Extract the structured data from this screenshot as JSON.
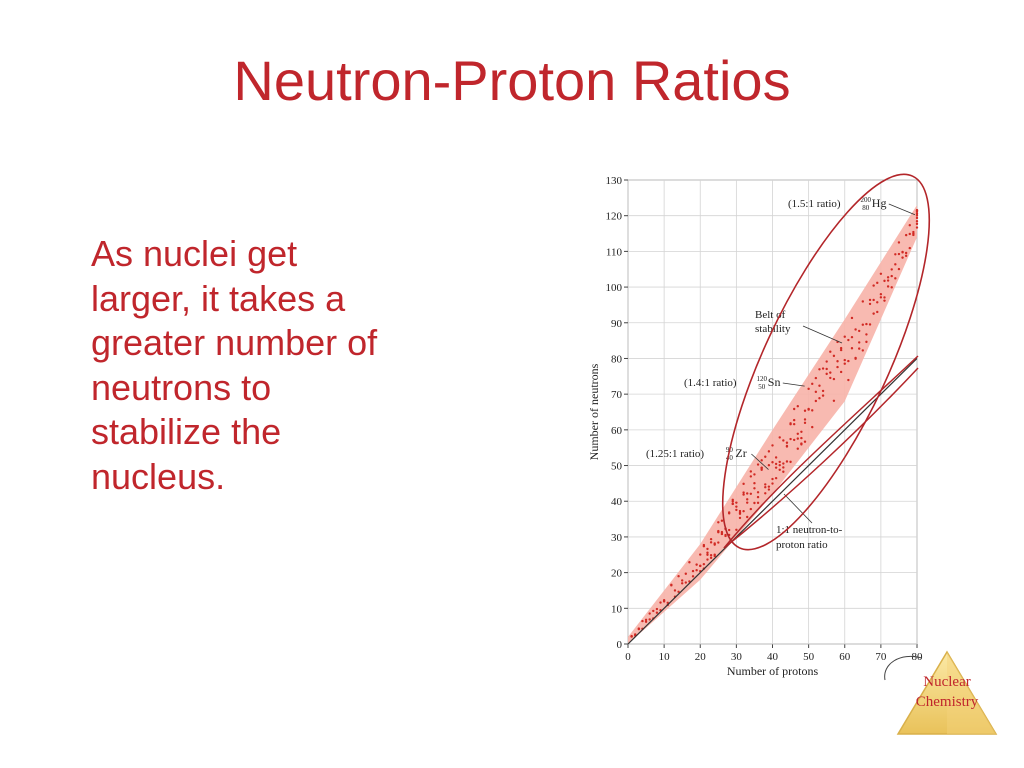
{
  "title": "Neutron-Proton Ratios",
  "body_lines": [
    "As nuclei get",
    "larger, it takes a",
    "greater number of",
    "neutrons to",
    "stabilize the",
    "nucleus."
  ],
  "badge": {
    "line1": "Nuclear",
    "line2": "Chemistry"
  },
  "colors": {
    "title": "#c0262c",
    "belt": "#f7b3a8",
    "points": "#d12a24",
    "ellipse": "#b3262a"
  },
  "chart_data": {
    "type": "scatter",
    "xlabel": "Number of protons",
    "ylabel": "Number of neutrons",
    "xlim": [
      0,
      80
    ],
    "ylim": [
      0,
      130
    ],
    "xticks": [
      0,
      10,
      20,
      30,
      40,
      50,
      60,
      70,
      80
    ],
    "yticks": [
      0,
      10,
      20,
      30,
      40,
      50,
      60,
      70,
      80,
      90,
      100,
      110,
      120,
      130
    ],
    "grid": true,
    "series": [
      {
        "name": "Belt of stability",
        "type": "area",
        "upper": [
          [
            0,
            2
          ],
          [
            20,
            28
          ],
          [
            40,
            60
          ],
          [
            60,
            91
          ],
          [
            80,
            123
          ]
        ],
        "lower": [
          [
            0,
            0
          ],
          [
            20,
            18
          ],
          [
            40,
            42
          ],
          [
            60,
            68
          ],
          [
            80,
            114
          ]
        ]
      },
      {
        "name": "1:1 neutron-to-proton ratio",
        "type": "line",
        "points": [
          [
            0,
            0
          ],
          [
            80,
            80
          ]
        ]
      }
    ],
    "annotations": {
      "hg": {
        "ratio": "(1.5:1 ratio)",
        "mass": "200",
        "z": "80",
        "symbol": "Hg",
        "x": 80,
        "y": 120
      },
      "sn": {
        "ratio": "(1.4:1 ratio)",
        "mass": "120",
        "z": "50",
        "symbol": "Sn",
        "x": 50,
        "y": 70
      },
      "zr": {
        "ratio": "(1.25:1 ratio)",
        "mass": "90",
        "z": "40",
        "symbol": "Zr",
        "x": 40,
        "y": 50
      },
      "belt_line1": "Belt of",
      "belt_line2": "stability",
      "one_line1": "1:1 neutron-to-",
      "one_line2": "proton ratio"
    }
  }
}
